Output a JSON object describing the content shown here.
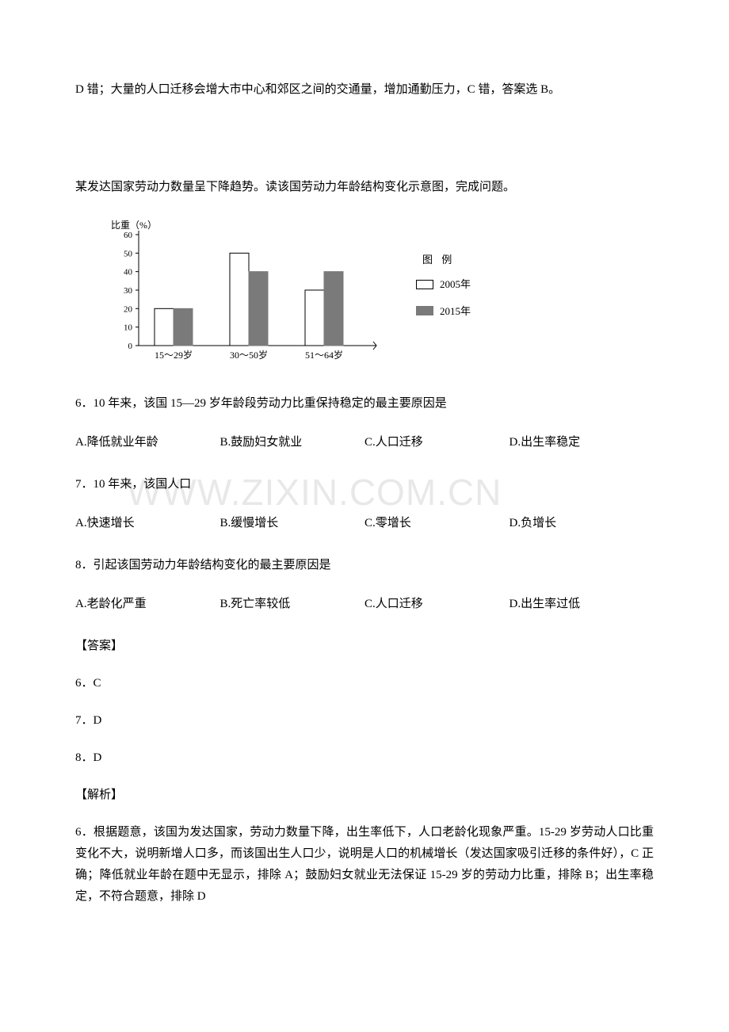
{
  "top_fragment": "D 错；大量的人口迁移会增大市中心和郊区之间的交通量，增加通勤压力，C 错，答案选 B。",
  "passage_intro": "某发达国家劳动力数量呈下降趋势。读该国劳动力年龄结构变化示意图，完成问题。",
  "chart": {
    "ylabel": "比重（%）",
    "ymax": 60,
    "ticks": [
      0,
      10,
      20,
      30,
      40,
      50,
      60
    ],
    "categories": [
      "15～29岁",
      "30～50岁",
      "51～64岁"
    ],
    "series_a_label": "2005年",
    "series_b_label": "2015年",
    "series_a": [
      20,
      50,
      30
    ],
    "series_b": [
      20,
      40,
      40
    ],
    "legend_title": "图 例",
    "color_a": "#ffffff",
    "color_b": "#7a7a7a",
    "grid_color": "#999999",
    "axis_color": "#000000"
  },
  "q6": {
    "stem": "6．10 年来，该国 15—29 岁年龄段劳动力比重保持稳定的最主要原因是",
    "A": "A.降低就业年龄",
    "B": "B.鼓励妇女就业",
    "C": "C.人口迁移",
    "D": "D.出生率稳定"
  },
  "q7": {
    "stem": "7．10 年来，该国人口",
    "A": "A.快速增长",
    "B": "B.缓慢增长",
    "C": "C.零增长",
    "D": "D.负增长"
  },
  "q8": {
    "stem": "8．引起该国劳动力年龄结构变化的最主要原因是",
    "A": "A.老龄化严重",
    "B": "B.死亡率较低",
    "C": "C.人口迁移",
    "D": "D.出生率过低"
  },
  "answers_heading": "【答案】",
  "ans6": "6．C",
  "ans7": "7．D",
  "ans8": "8．D",
  "explain_heading": "【解析】",
  "explain6": "6．根据题意，该国为发达国家，劳动力数量下降，出生率低下，人口老龄化现象严重。15-29 岁劳动人口比重变化不大，说明新增人口多，而该国出生人口少，说明是人口的机械增长（发达国家吸引迁移的条件好），C 正确；降低就业年龄在题中无显示，排除 A；鼓励妇女就业无法保证 15-29 岁的劳动力比重，排除 B；出生率稳定，不符合题意，排除 D",
  "watermark": "WWW.ZIXIN.COM.CN"
}
